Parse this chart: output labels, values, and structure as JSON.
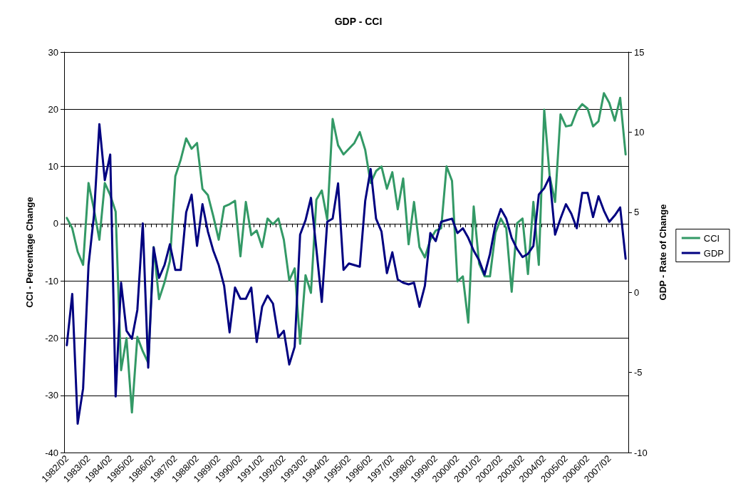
{
  "chart_data": {
    "type": "line",
    "title": "GDP - CCI",
    "ylabel": "CCI - Percentage Change",
    "y2label": "GDP - Rate of Change",
    "categories": [
      "1982/02",
      null,
      null,
      null,
      "1983/02",
      null,
      null,
      null,
      "1984/02",
      null,
      null,
      null,
      "1985/02",
      null,
      null,
      null,
      "1986/02",
      null,
      null,
      null,
      "1987/02",
      null,
      null,
      null,
      "1988/02",
      null,
      null,
      null,
      "1989/02",
      null,
      null,
      null,
      "1990/02",
      null,
      null,
      null,
      "1991/02",
      null,
      null,
      null,
      "1992/02",
      null,
      null,
      null,
      "1993/02",
      null,
      null,
      null,
      "1994/02",
      null,
      null,
      null,
      "1995/02",
      null,
      null,
      null,
      "1996/02",
      null,
      null,
      null,
      "1997/02",
      null,
      null,
      null,
      "1998/02",
      null,
      null,
      null,
      "1999/02",
      null,
      null,
      null,
      "2000/02",
      null,
      null,
      null,
      "2001/02",
      null,
      null,
      null,
      "2002/02",
      null,
      null,
      null,
      "2003/02",
      null,
      null,
      null,
      "2004/02",
      null,
      null,
      null,
      "2005/02",
      null,
      null,
      null,
      "2006/02",
      null,
      null,
      null,
      "2007/02",
      null,
      null,
      null
    ],
    "series": [
      {
        "name": "CCI",
        "color": "#339966",
        "values": [
          1.0,
          -0.8,
          -4.9,
          -7.2,
          7.1,
          2.5,
          -2.8,
          7.1,
          5.0,
          2.1,
          -25.6,
          -20.0,
          -33.0,
          -19.8,
          -22.3,
          -24.3,
          -4.1,
          -13.2,
          -10.3,
          -6.5,
          8.3,
          11.2,
          14.9,
          13.1,
          14.1,
          6.1,
          5.0,
          1.3,
          -2.8,
          3.0,
          3.4,
          4.0,
          -5.7,
          3.8,
          -2.0,
          -1.2,
          -4.1,
          0.9,
          -0.1,
          0.9,
          -2.8,
          -9.9,
          -7.8,
          -21.0,
          -9.0,
          -12.1,
          4.2,
          5.8,
          0.7,
          18.3,
          13.7,
          12.1,
          13.1,
          14.1,
          16.0,
          12.9,
          7.1,
          9.2,
          10.0,
          6.1,
          9.0,
          2.5,
          7.9,
          -3.6,
          3.8,
          -4.1,
          -5.9,
          -2.8,
          -1.2,
          -0.8,
          10.0,
          7.5,
          -10.1,
          -9.2,
          -17.3,
          3.0,
          -7.0,
          -9.2,
          -9.2,
          -1.6,
          0.9,
          -0.8,
          -11.9,
          0.1,
          0.9,
          -8.8,
          3.8,
          -7.2,
          19.9,
          8.3,
          3.8,
          19.1,
          17.0,
          17.2,
          19.7,
          20.9,
          20.1,
          17.0,
          17.9,
          22.8,
          21.1,
          18.0,
          22.0,
          12.1
        ]
      },
      {
        "name": "GDP",
        "color": "#000080",
        "axis": "y2",
        "values": [
          -3.3,
          -0.1,
          -8.2,
          -6.0,
          1.7,
          4.8,
          10.5,
          7.0,
          8.6,
          -6.5,
          0.6,
          -2.4,
          -2.9,
          -1.1,
          4.3,
          -4.7,
          2.8,
          0.9,
          1.7,
          3.0,
          1.4,
          1.4,
          5.0,
          6.1,
          2.9,
          5.5,
          3.8,
          2.6,
          1.7,
          0.4,
          -2.5,
          0.3,
          -0.4,
          -0.4,
          0.3,
          -3.1,
          -0.9,
          -0.2,
          -0.7,
          -2.8,
          -2.4,
          -4.5,
          -3.4,
          3.6,
          4.5,
          5.9,
          2.7,
          -0.6,
          4.4,
          4.6,
          6.8,
          1.4,
          1.8,
          1.7,
          1.6,
          5.7,
          7.7,
          4.6,
          3.8,
          1.2,
          2.5,
          0.8,
          0.6,
          0.5,
          0.6,
          -0.9,
          0.4,
          3.7,
          3.2,
          4.4,
          4.5,
          4.6,
          3.7,
          4.0,
          3.4,
          2.6,
          2.0,
          1.1,
          2.4,
          4.2,
          5.2,
          4.6,
          3.4,
          2.7,
          2.2,
          2.4,
          2.9,
          6.1,
          6.5,
          7.2,
          3.6,
          4.6,
          5.5,
          4.9,
          4.0,
          6.2,
          6.2,
          4.7,
          6.0,
          5.1,
          4.4,
          4.8,
          5.3,
          2.1
        ]
      }
    ],
    "ylim": [
      -40,
      30
    ],
    "yticks": [
      -40,
      -30,
      -20,
      -10,
      0,
      10,
      20,
      30
    ],
    "y2lim": [
      -10,
      15
    ],
    "y2ticks": [
      -10,
      -5,
      0,
      5,
      10,
      15
    ],
    "grid": "y",
    "legend": "right",
    "marker": "none",
    "line_style": "solid"
  }
}
